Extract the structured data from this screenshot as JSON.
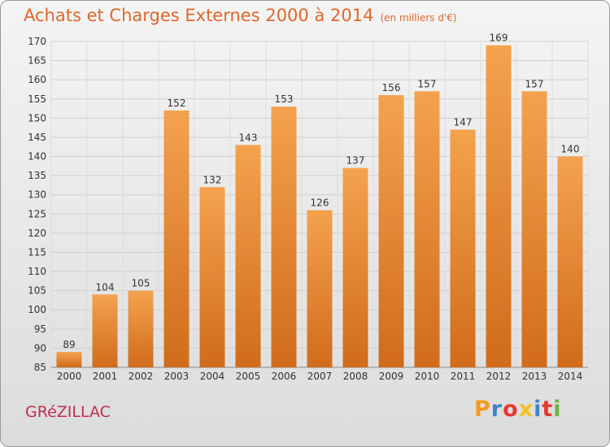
{
  "title": {
    "main": "Achats et Charges Externes 2000 à 2014",
    "unit": "(en milliers d'€)"
  },
  "commune": "GRéZILLAC",
  "logo": {
    "text": "Proxiti",
    "letters": [
      {
        "char": "P",
        "color": "#f29a1e"
      },
      {
        "char": "r",
        "color": "#3a86c8"
      },
      {
        "char": "o",
        "color": "#e8382f"
      },
      {
        "char": "x",
        "color": "#f2c01e"
      },
      {
        "char": "i",
        "color": "#3a86c8"
      },
      {
        "char": "t",
        "color": "#e8382f"
      },
      {
        "char": "i",
        "color": "#6ab344"
      }
    ]
  },
  "colors": {
    "title": "#e0672a",
    "bar_light": "#f4a24e",
    "bar_dark": "#d06c1c",
    "commune": "#c0304a"
  },
  "chart_data": {
    "type": "bar",
    "title": "Achats et Charges Externes 2000 à 2014",
    "subtitle": "(en milliers d'€)",
    "xlabel": "",
    "ylabel": "",
    "categories": [
      "2000",
      "2001",
      "2002",
      "2003",
      "2004",
      "2005",
      "2006",
      "2007",
      "2008",
      "2009",
      "2010",
      "2011",
      "2012",
      "2013",
      "2014"
    ],
    "values": [
      89,
      104,
      105,
      152,
      132,
      143,
      153,
      126,
      137,
      156,
      157,
      147,
      169,
      157,
      140
    ],
    "ylim": [
      85,
      170
    ],
    "yticks": [
      85,
      90,
      95,
      100,
      105,
      110,
      115,
      120,
      125,
      130,
      135,
      140,
      145,
      150,
      155,
      160,
      165,
      170
    ],
    "grid": true,
    "legend": "none"
  }
}
